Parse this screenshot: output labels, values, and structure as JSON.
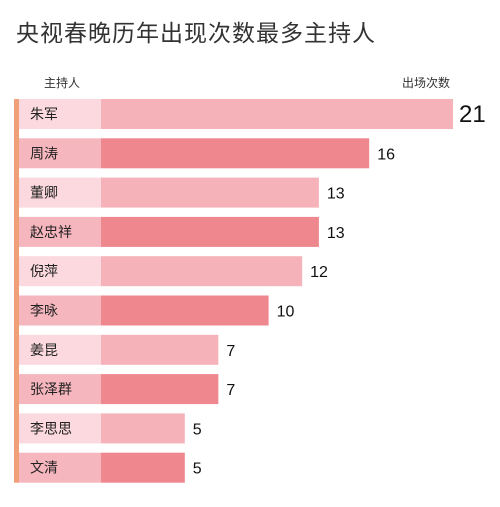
{
  "title": "央视春晚历年出现次数最多主持人",
  "header": {
    "name_col": "主持人",
    "count_col": "出场次数"
  },
  "colors": {
    "edge": "#f0a078",
    "label_light": "#fbd9df",
    "label_dark": "#f6b6be",
    "bar_light": "#f5b3b9",
    "bar_dark": "#ef878f"
  },
  "chart_data": {
    "type": "bar",
    "orientation": "horizontal",
    "xlabel": "主持人",
    "ylabel": "出场次数",
    "categories": [
      "朱军",
      "周涛",
      "董卿",
      "赵忠祥",
      "倪萍",
      "李咏",
      "姜昆",
      "张泽群",
      "李思思",
      "文清"
    ],
    "values": [
      21,
      16,
      13,
      13,
      12,
      10,
      7,
      7,
      5,
      5
    ],
    "xlim": [
      0,
      21
    ]
  }
}
